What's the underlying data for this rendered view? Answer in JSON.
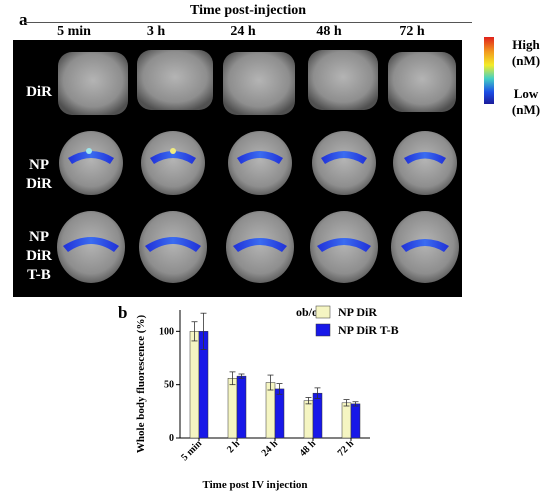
{
  "panel_a": {
    "letter": "a",
    "header": "Time post-injection",
    "columns": [
      "5 min",
      "3 h",
      "24 h",
      "48 h",
      "72 h"
    ],
    "rows": [
      {
        "label": "DiR"
      },
      {
        "label": "NP\nDiR"
      },
      {
        "label": "NP\nDiR\nT-B"
      }
    ],
    "colorbar": {
      "high": "High\n(nM)",
      "low": "Low\n(nM)"
    }
  },
  "panel_b": {
    "letter": "b",
    "subtitle": "ob/ob"
  },
  "chart_data": {
    "type": "bar",
    "title": "ob/ob",
    "categories": [
      "5 min",
      "2 h",
      "24 h",
      "48 h",
      "72 h"
    ],
    "xlabel": "Time post IV injection",
    "ylabel": "Whole body fluorescence (%)",
    "ylim": [
      0,
      120
    ],
    "yticks": [
      0,
      50,
      100
    ],
    "legend_position": "top-right",
    "series": [
      {
        "name": "NP DiR",
        "color": "#f5f5c2",
        "values": [
          100,
          56,
          52,
          35,
          33
        ],
        "errors": [
          9,
          6,
          7,
          3,
          3
        ]
      },
      {
        "name": "NP DiR T-B",
        "color": "#1818e8",
        "values": [
          100,
          58,
          46,
          42,
          32
        ],
        "errors": [
          17,
          2,
          5,
          5,
          2
        ]
      }
    ]
  }
}
